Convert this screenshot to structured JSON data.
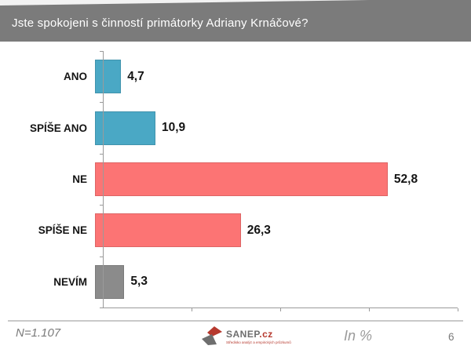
{
  "title_bar": {
    "text": "Jste spokojeni s činností primátorky Adriany Krnáčové?",
    "bg_color": "#7b7b7b",
    "text_color": "#ffffff"
  },
  "chart_data": {
    "type": "bar",
    "orientation": "horizontal",
    "title": "Jste spokojeni s činností primátorky Adriany Krnáčové?",
    "categories": [
      "ANO",
      "SPÍŠE ANO",
      "NE",
      "SPÍŠE NE",
      "NEVÍM"
    ],
    "values": [
      4.7,
      10.9,
      52.8,
      26.3,
      5.3
    ],
    "value_labels": [
      "4,7",
      "10,9",
      "52,8",
      "26,3",
      "5,3"
    ],
    "bar_colors": [
      "#4aa8c5",
      "#4aa8c5",
      "#fc7474",
      "#fc7474",
      "#8b8b8b"
    ],
    "unit": "%",
    "xlabel": "",
    "ylabel": "",
    "xlim": [
      0,
      64
    ],
    "x_tick_count": 4,
    "x_tick_labels_visible": false,
    "grid": false,
    "legend": "none"
  },
  "footer": {
    "sample_size": "N=1.107",
    "unit_note": "In %",
    "page_number": "6",
    "logo": {
      "name": "SANEP",
      "domain": ".cz",
      "tagline": "Středisko analýz a empirických průzkumů",
      "mark_color_top": "#b6392e",
      "mark_color_bottom": "#6e6e6e"
    }
  }
}
